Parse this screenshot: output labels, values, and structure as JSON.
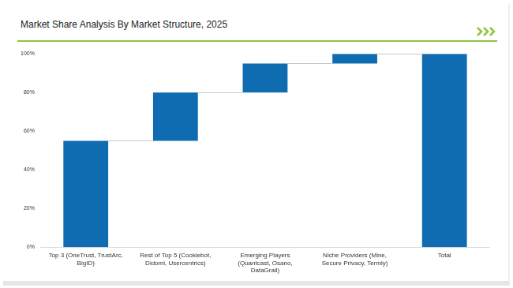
{
  "chart_data": {
    "type": "waterfall",
    "title": "Market Share Analysis By Market Structure, 2025",
    "categories": [
      "Top 3 (OneTrust, TrustArc, BigID)",
      "Rest of Top 5 (Cookiebot, Didomi, Usercentrics)",
      "Emerging Players (Quantcast, Osano, DataGrail)",
      "Niche Providers (Mine, Secure Privacy, Termly)",
      "Total"
    ],
    "values": [
      55,
      25,
      15,
      5,
      100
    ],
    "color": "#0f6cb0",
    "ylim": [
      0,
      100
    ],
    "yticks": [
      {
        "value": 0,
        "label": "0%"
      },
      {
        "value": 20,
        "label": "20%"
      },
      {
        "value": 40,
        "label": "40%"
      },
      {
        "value": 60,
        "label": "60%"
      },
      {
        "value": 80,
        "label": "80%"
      },
      {
        "value": 100,
        "label": "100%"
      }
    ],
    "grid": false
  }
}
